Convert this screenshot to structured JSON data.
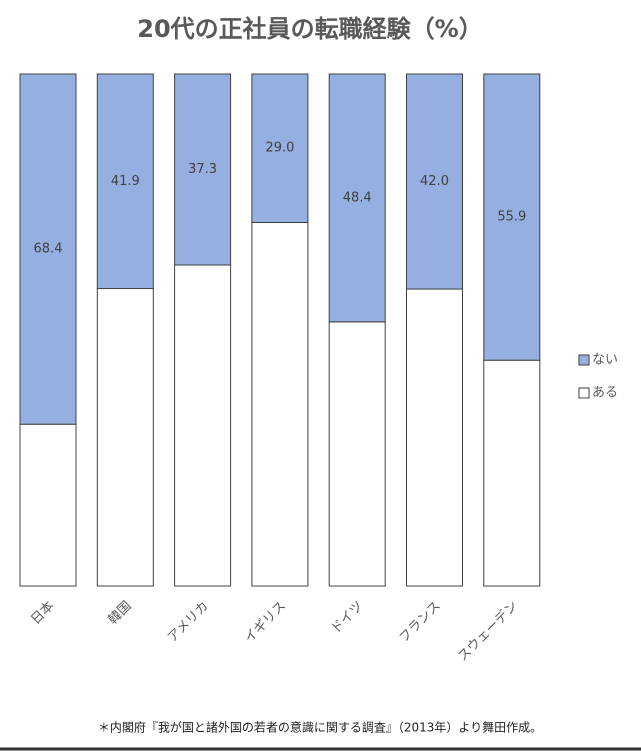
{
  "chart_data": {
    "type": "stacked_bar_100",
    "title": "20代の正社員の転職経験（%）",
    "categories": [
      "日本",
      "韓国",
      "アメリカ",
      "イギリス",
      "ドイツ",
      "フランス",
      "スウェーデン"
    ],
    "series": [
      {
        "name": "ある",
        "color": "#ffffff",
        "values": [
          31.6,
          58.1,
          62.7,
          71.0,
          51.6,
          58.0,
          44.1
        ]
      },
      {
        "name": "ない",
        "color": "#95b0e0",
        "values": [
          68.4,
          41.9,
          37.3,
          29.0,
          48.4,
          42.0,
          55.9
        ],
        "value_labels": [
          "68.4",
          "41.9",
          "37.3",
          "29.0",
          "48.4",
          "42.0",
          "55.9"
        ]
      }
    ],
    "ylim": [
      0,
      100
    ],
    "source": "＊内閣府『我が国と諸外国の若者の意識に関する調査』（2013年）より舞田作成。"
  }
}
